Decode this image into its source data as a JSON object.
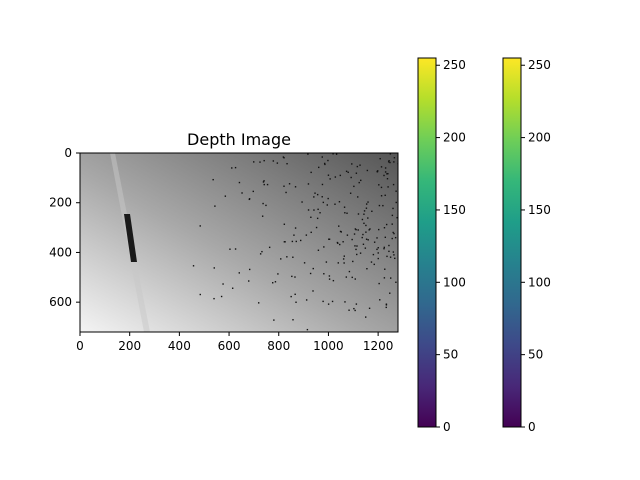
{
  "chart_data": [
    {
      "type": "heatmap",
      "title": "Depth Image",
      "xlabel": "",
      "ylabel": "",
      "colormap": "gray",
      "image_size": [
        1280,
        720
      ],
      "xlim": [
        0,
        1280
      ],
      "ylim": [
        720,
        0
      ],
      "x_ticks": [
        0,
        200,
        400,
        600,
        800,
        1000,
        1200
      ],
      "y_ticks": [
        0,
        200,
        400,
        600
      ],
      "grid": false,
      "description_values": {
        "left_edge_gray": 0.86,
        "right_edge_gray": 0.33
      }
    },
    {
      "type": "colorbar",
      "colormap": "viridis",
      "range": [
        0,
        255
      ],
      "ticks": [
        0,
        50,
        100,
        150,
        200,
        250
      ]
    },
    {
      "type": "colorbar",
      "colormap": "viridis",
      "range": [
        0,
        255
      ],
      "ticks": [
        0,
        50,
        100,
        150,
        200,
        250
      ]
    }
  ],
  "colors": {
    "viridis_stops": [
      "#440154",
      "#482878",
      "#3e4989",
      "#31688e",
      "#26828e",
      "#1f9e89",
      "#35b779",
      "#6ece58",
      "#b5de2b",
      "#fde725"
    ]
  }
}
